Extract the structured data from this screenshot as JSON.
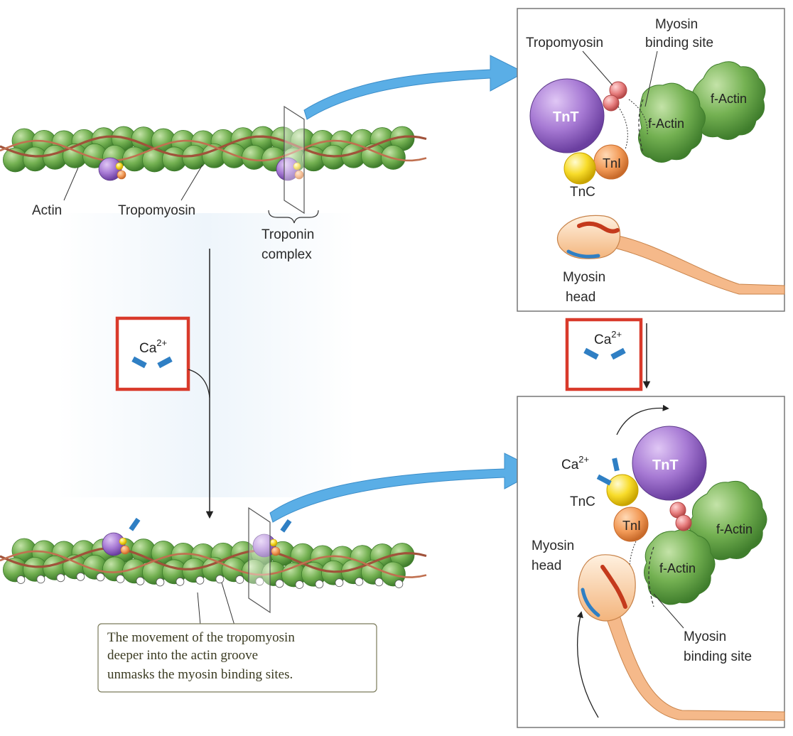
{
  "top_left": {
    "actin": "Actin",
    "tropomyosin": "Tropomyosin",
    "troponin_line1": "Troponin",
    "troponin_line2": "complex"
  },
  "top_right": {
    "tropomyosin": "Tropomyosin",
    "myosin_binding_line1": "Myosin",
    "myosin_binding_line2": "binding site",
    "f_actin_1": "f-Actin",
    "f_actin_2": "f-Actin",
    "tnt": "TnT",
    "tni": "TnI",
    "tnc": "TnC",
    "myosin_head_line1": "Myosin",
    "myosin_head_line2": "head"
  },
  "calcium_left": {
    "base": "Ca",
    "sup": "2+"
  },
  "calcium_right": {
    "base": "Ca",
    "sup": "2+"
  },
  "bottom_right": {
    "ca_base": "Ca",
    "ca_sup": "2+",
    "tnt": "TnT",
    "tnc": "TnC",
    "tni": "TnI",
    "f_actin_1": "f-Actin",
    "f_actin_2": "f-Actin",
    "myosin_head_line1": "Myosin",
    "myosin_head_line2": "head",
    "myosin_binding_line1": "Myosin",
    "myosin_binding_line2": "binding site"
  },
  "caption": {
    "line1": "The movement of the tropomyosin",
    "line2": "deeper into the actin groove",
    "line3": "unmasks the myosin binding sites."
  },
  "colors": {
    "actin_green": "#6fae4e",
    "tnt_purple": "#9b6fc8",
    "tni_orange": "#f0a060",
    "tnc_yellow": "#f5d020",
    "tropomyosin_brown": "#a0523a",
    "calcium_blue": "#2f7fc4",
    "callout_arrow": "#5aaee6",
    "frame_red": "#d93a2b"
  }
}
